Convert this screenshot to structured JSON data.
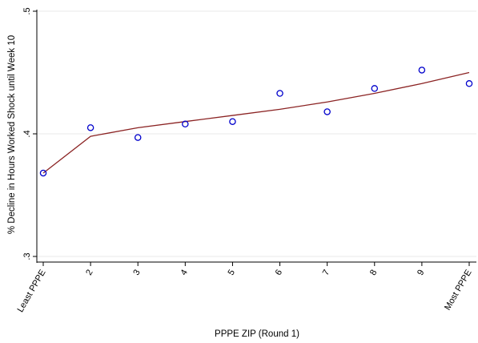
{
  "chart_data": {
    "type": "scatter",
    "xlabel": "PPPE ZIP (Round 1)",
    "ylabel": "% Decline in Hours Worked Shock until Week 10",
    "x_ticks": [
      "Least PPPE",
      "2",
      "3",
      "4",
      "5",
      "6",
      "7",
      "8",
      "9",
      "Most PPPE"
    ],
    "y_ticks": [
      ".3",
      ".4",
      ".5"
    ],
    "ylim": [
      0.3,
      0.5
    ],
    "grid": true,
    "series": [
      {
        "type": "scatter",
        "x": [
          1,
          2,
          3,
          4,
          5,
          6,
          7,
          8,
          9,
          10
        ],
        "values": [
          0.368,
          0.405,
          0.397,
          0.408,
          0.41,
          0.433,
          0.418,
          0.437,
          0.452,
          0.441
        ]
      },
      {
        "type": "line",
        "x": [
          1,
          2,
          3,
          4,
          5,
          6,
          7,
          8,
          9,
          10
        ],
        "values": [
          0.368,
          0.398,
          0.405,
          0.41,
          0.415,
          0.42,
          0.426,
          0.433,
          0.441,
          0.45
        ]
      }
    ],
    "colors": {
      "points": "#0000cc",
      "line": "#8b2323",
      "grid": "#eaeaea",
      "axis": "#000000"
    }
  }
}
